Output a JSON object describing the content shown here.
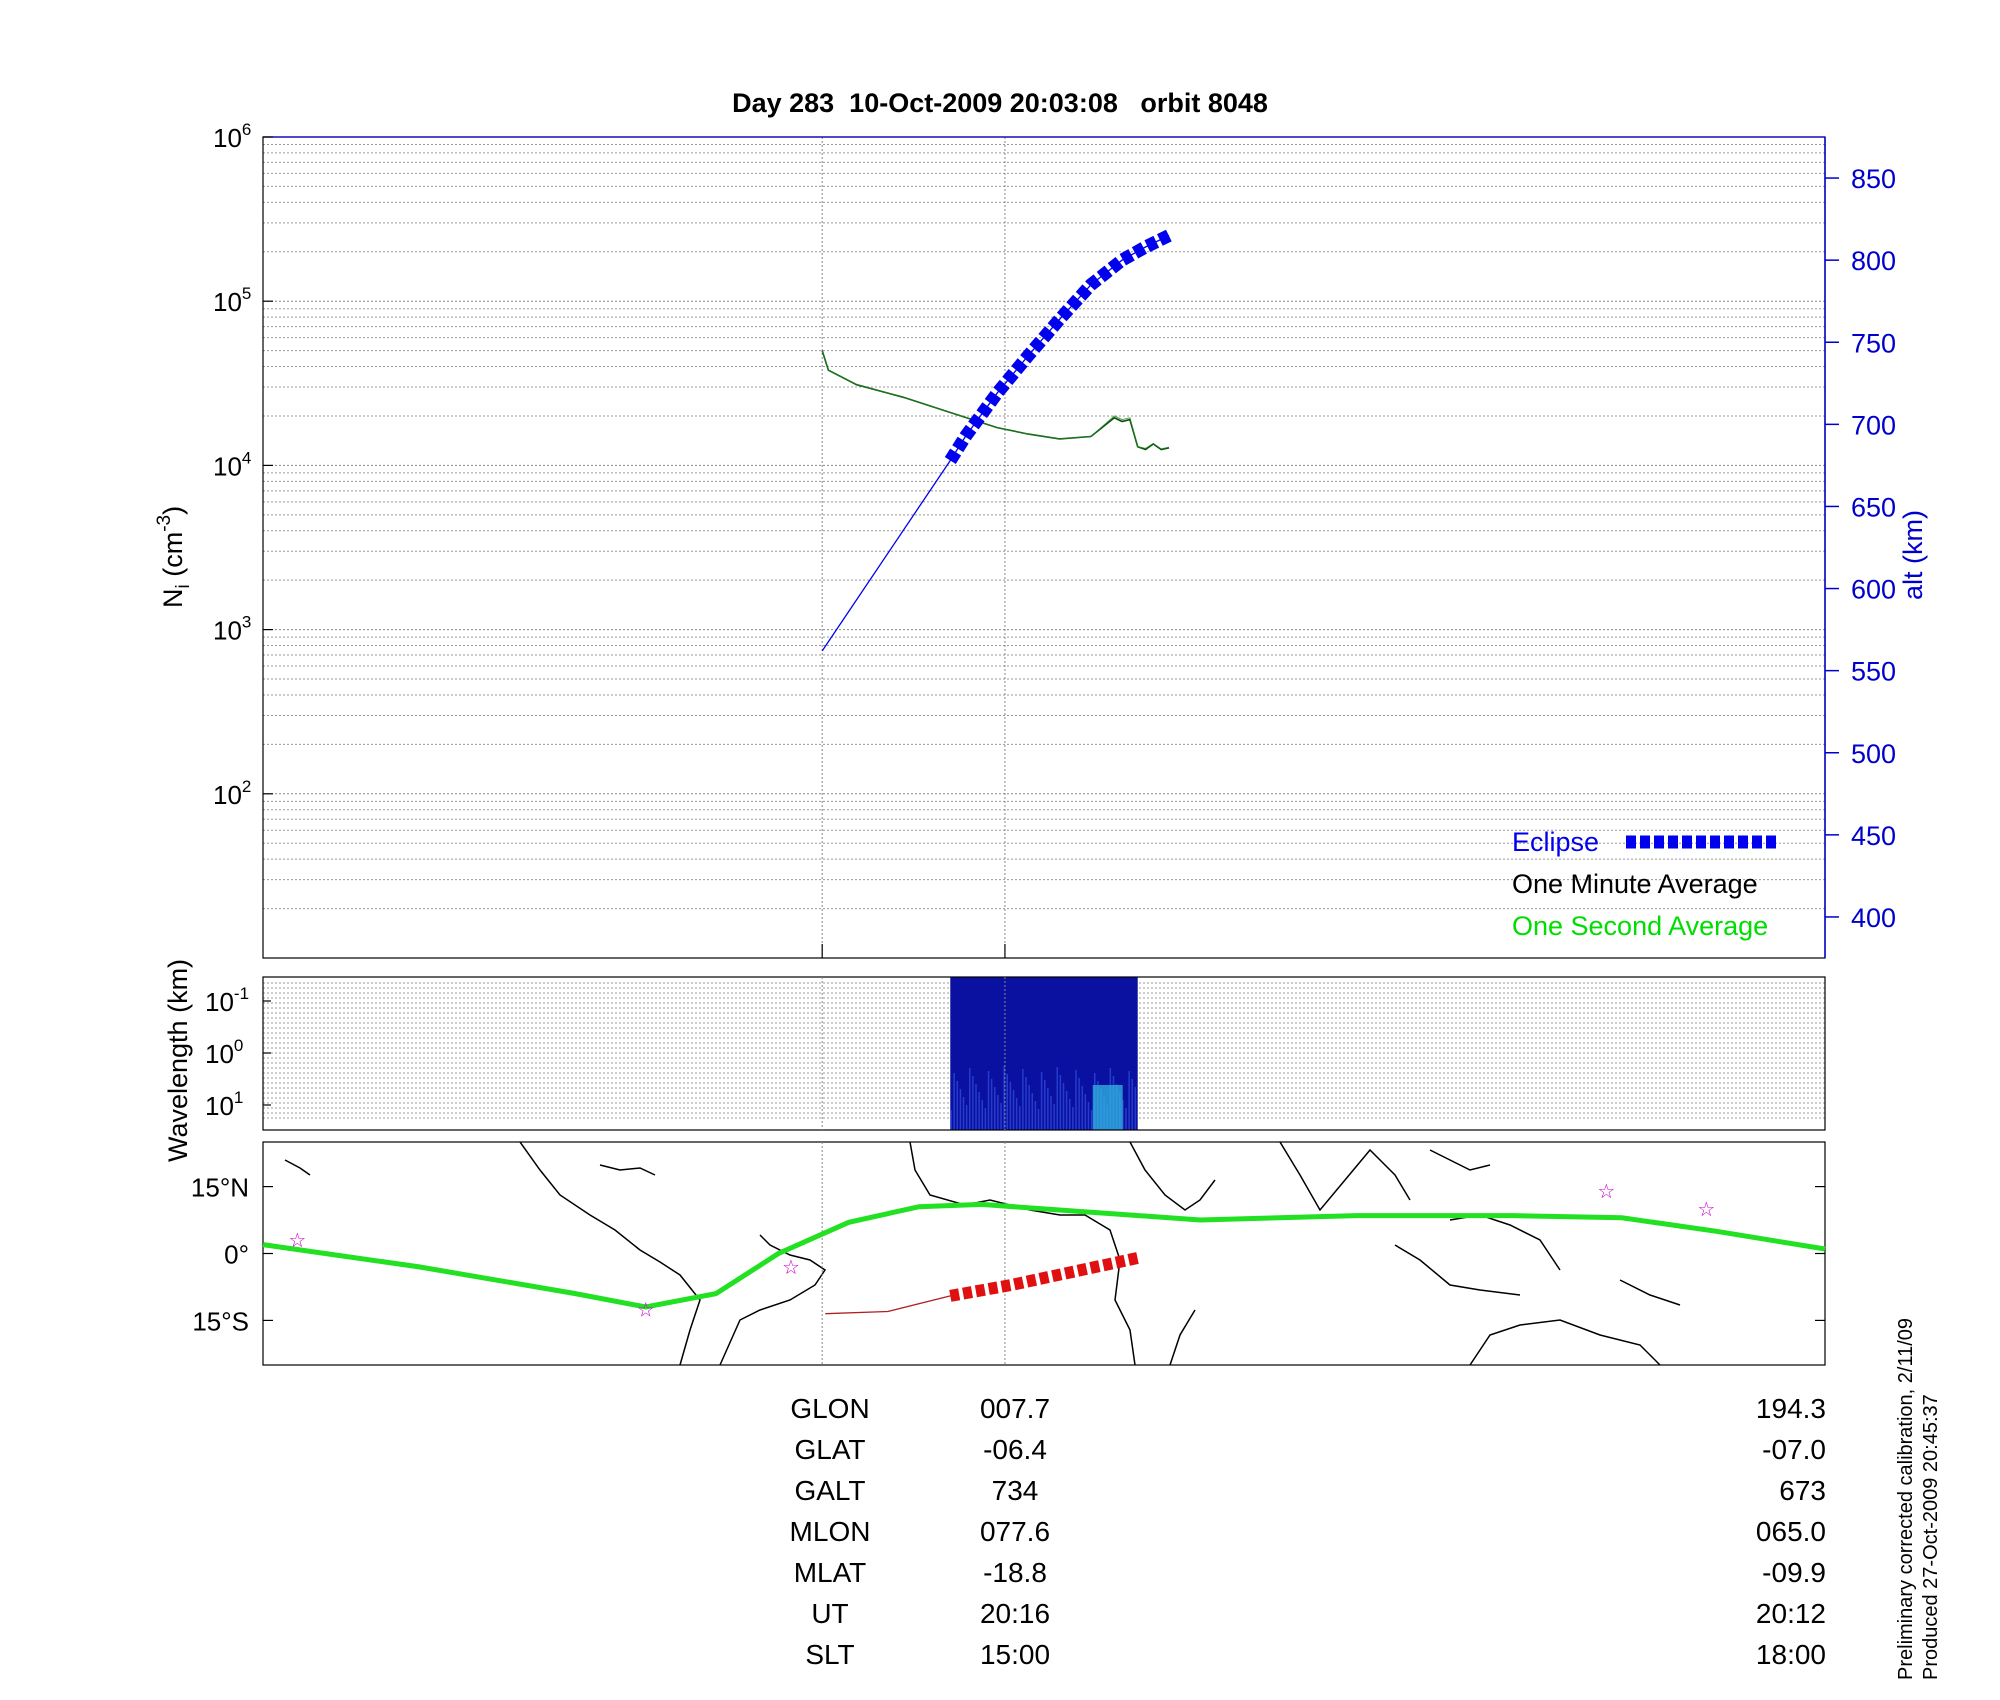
{
  "title": "Day 283  10-Oct-2009 20:03:08   orbit 8048",
  "colors": {
    "axis": "#0000cc",
    "eclipse": "#0000ee",
    "one_minute": "#000000",
    "one_second": "#00dd00",
    "density_line": "#0a4a0a",
    "map_track": "#22e022",
    "map_eclipse": "#e01010",
    "map_star": "#cc00cc",
    "spectrogram": "#0a10a0"
  },
  "chart_data": [
    {
      "type": "line",
      "title": "Day 283  10-Oct-2009 20:03:08   orbit 8048",
      "ylabel": "N_i (cm^-3)",
      "ylabel_parts": {
        "base": "N",
        "sub": "i",
        "unit_open": " (cm",
        "sup": "-3",
        "unit_close": ")"
      },
      "yscale": "log",
      "ylim": [
        10,
        1000000
      ],
      "y_ticks": [
        {
          "base": "10",
          "exp": "2"
        },
        {
          "base": "10",
          "exp": "3"
        },
        {
          "base": "10",
          "exp": "4"
        },
        {
          "base": "10",
          "exp": "5"
        },
        {
          "base": "10",
          "exp": "6"
        }
      ],
      "y_tick_values": [
        100,
        1000,
        10000,
        100000,
        1000000
      ],
      "y2label": "alt (km)",
      "y2lim": [
        375,
        875
      ],
      "y2_ticks": [
        "400",
        "450",
        "500",
        "550",
        "600",
        "650",
        "700",
        "750",
        "800",
        "850"
      ],
      "y2_tick_values": [
        400,
        450,
        500,
        550,
        600,
        650,
        700,
        750,
        800,
        850
      ],
      "grid": true,
      "legend_position": "bottom-right",
      "legend": [
        {
          "label": "Eclipse",
          "color": "#0000ee"
        },
        {
          "label": "One Minute Average",
          "color": "#000000"
        },
        {
          "label": "One Second Average",
          "color": "#00dd00"
        }
      ],
      "series": [
        {
          "name": "One Minute Average",
          "axis": "left",
          "x": [
            0.358,
            0.362,
            0.38,
            0.41,
            0.44,
            0.47,
            0.49,
            0.51,
            0.53,
            0.545,
            0.55,
            0.555,
            0.56,
            0.565,
            0.57,
            0.575,
            0.58
          ],
          "y": [
            50000,
            38000,
            31000,
            26000,
            21000,
            17000,
            15500,
            14500,
            15000,
            19500,
            18500,
            19000,
            13000,
            12500,
            13500,
            12500,
            12800
          ]
        },
        {
          "name": "One Second Average",
          "axis": "left",
          "x": [
            0.358,
            0.362,
            0.38,
            0.41,
            0.44,
            0.47,
            0.49,
            0.51,
            0.53,
            0.545,
            0.55,
            0.555,
            0.56,
            0.565,
            0.57,
            0.575,
            0.58
          ],
          "y": [
            50000,
            38000,
            31000,
            26000,
            21000,
            17000,
            15500,
            14500,
            15000,
            20000,
            19000,
            19500,
            13000,
            12700,
            13600,
            12600,
            12900
          ]
        },
        {
          "name": "alt (km)",
          "axis": "right",
          "x": [
            0.358,
            0.44,
            0.45,
            0.47,
            0.49,
            0.51,
            0.53,
            0.55,
            0.565,
            0.58
          ],
          "y": [
            562,
            678,
            693,
            719,
            742,
            764,
            785,
            800,
            808,
            815
          ]
        },
        {
          "name": "Eclipse",
          "axis": "right",
          "x": [
            0.44,
            0.45,
            0.47,
            0.49,
            0.51,
            0.53,
            0.55,
            0.565,
            0.58
          ],
          "y": [
            678,
            693,
            719,
            742,
            764,
            785,
            800,
            808,
            815
          ]
        }
      ]
    },
    {
      "type": "heatmap",
      "ylabel": "Wavelength (km)",
      "yscale": "log",
      "y_ticks": [
        {
          "base": "10",
          "exp": "-1"
        },
        {
          "base": "10",
          "exp": "0"
        },
        {
          "base": "10",
          "exp": "1"
        }
      ],
      "y_tick_values": [
        0.1,
        1,
        10
      ],
      "x_start": 0.44,
      "x_end": 0.56
    },
    {
      "type": "scatter",
      "ylabel": "",
      "y_ticks": [
        "15°N",
        "0°",
        "15°S"
      ],
      "y_tick_values": [
        15,
        0,
        -15
      ],
      "series": [
        {
          "name": "track",
          "x": [
            0,
            0.1,
            0.2,
            0.245,
            0.29,
            0.33,
            0.375,
            0.42,
            0.46,
            0.52,
            0.6,
            0.7,
            0.8,
            0.87,
            0.93,
            1.0
          ],
          "y": [
            2,
            -3,
            -9,
            -12,
            -9,
            0,
            7,
            10.5,
            11,
            9.5,
            7.5,
            8.5,
            8.5,
            8,
            5,
            1
          ]
        },
        {
          "name": "eclipse-segment",
          "x": [
            0.44,
            0.48,
            0.52,
            0.56
          ],
          "y": [
            -9.5,
            -7,
            -4,
            -1
          ]
        },
        {
          "name": "ut-line",
          "x": [
            0.36,
            0.4,
            0.44
          ],
          "y": [
            -13.5,
            -13,
            -9.5
          ]
        },
        {
          "name": "stars",
          "x": [
            0.022,
            0.245,
            0.338,
            0.86,
            0.924
          ],
          "y": [
            3,
            -12.5,
            -3,
            14,
            10
          ]
        }
      ]
    }
  ],
  "table": {
    "rows": [
      {
        "label": "GLON",
        "start": "007.7",
        "end": "194.3"
      },
      {
        "label": "GLAT",
        "start": "-06.4",
        "end": "-07.0"
      },
      {
        "label": "GALT",
        "start": "734",
        "end": "673"
      },
      {
        "label": "MLON",
        "start": "077.6",
        "end": "065.0"
      },
      {
        "label": "MLAT",
        "start": "-18.8",
        "end": "-09.9"
      },
      {
        "label": "UT",
        "start": "20:16",
        "end": "20:12"
      },
      {
        "label": "SLT",
        "start": "15:00",
        "end": "18:00"
      }
    ]
  },
  "footnotes": {
    "calibration": "Preliminary corrected calibration, 2/11/09",
    "produced": "Produced 27-Oct-2009 20:45:37"
  }
}
